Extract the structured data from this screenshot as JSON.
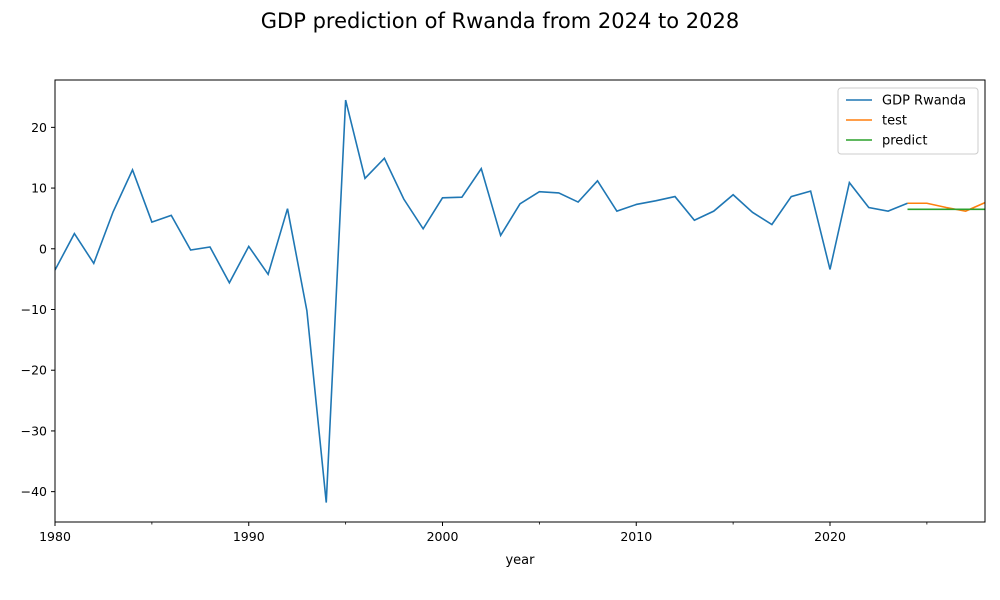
{
  "chart_data": {
    "type": "line",
    "title": "GDP prediction of Rwanda from 2024 to 2028",
    "xlabel": "year",
    "ylabel": "",
    "xlim": [
      1980,
      2028
    ],
    "ylim": [
      -45,
      27.8
    ],
    "xticks": [
      1980,
      1990,
      2000,
      2010,
      2020
    ],
    "xtick_labels": [
      "1980",
      "1990",
      "2000",
      "2010",
      "2020"
    ],
    "yticks": [
      20,
      10,
      0,
      -10,
      -20,
      -30,
      -40
    ],
    "ytick_labels": [
      "20",
      "10",
      "0",
      "−10",
      "−20",
      "−30",
      "−40"
    ],
    "grid": false,
    "legend_position": "top-right",
    "series": [
      {
        "name": "GDP Rwanda",
        "color": "#1f77b4",
        "x": [
          1980,
          1981,
          1982,
          1983,
          1984,
          1985,
          1986,
          1987,
          1988,
          1989,
          1990,
          1991,
          1992,
          1993,
          1994,
          1995,
          1996,
          1997,
          1998,
          1999,
          2000,
          2001,
          2002,
          2003,
          2004,
          2005,
          2006,
          2007,
          2008,
          2009,
          2010,
          2011,
          2012,
          2013,
          2014,
          2015,
          2016,
          2017,
          2018,
          2019,
          2020,
          2021,
          2022,
          2023,
          2024
        ],
        "y": [
          -3.5,
          2.5,
          -2.4,
          6.1,
          13.0,
          4.4,
          5.5,
          -0.2,
          0.3,
          -5.6,
          0.4,
          -4.2,
          6.6,
          -10.2,
          -41.8,
          24.5,
          11.6,
          14.9,
          8.2,
          3.3,
          8.4,
          8.5,
          13.2,
          2.2,
          7.4,
          9.4,
          9.2,
          7.7,
          11.2,
          6.2,
          7.3,
          7.9,
          8.6,
          4.7,
          6.2,
          8.9,
          6.0,
          4.0,
          8.6,
          9.5,
          -3.4,
          10.9,
          6.8,
          6.2,
          7.5
        ]
      },
      {
        "name": "test",
        "color": "#ff7f0e",
        "x": [
          2024,
          2025,
          2026,
          2027,
          2028
        ],
        "y": [
          7.5,
          7.5,
          6.8,
          6.2,
          7.6
        ]
      },
      {
        "name": "predict",
        "color": "#2ca02c",
        "x": [
          2024,
          2025,
          2026,
          2027,
          2028
        ],
        "y": [
          6.5,
          6.5,
          6.5,
          6.5,
          6.5
        ]
      }
    ]
  }
}
